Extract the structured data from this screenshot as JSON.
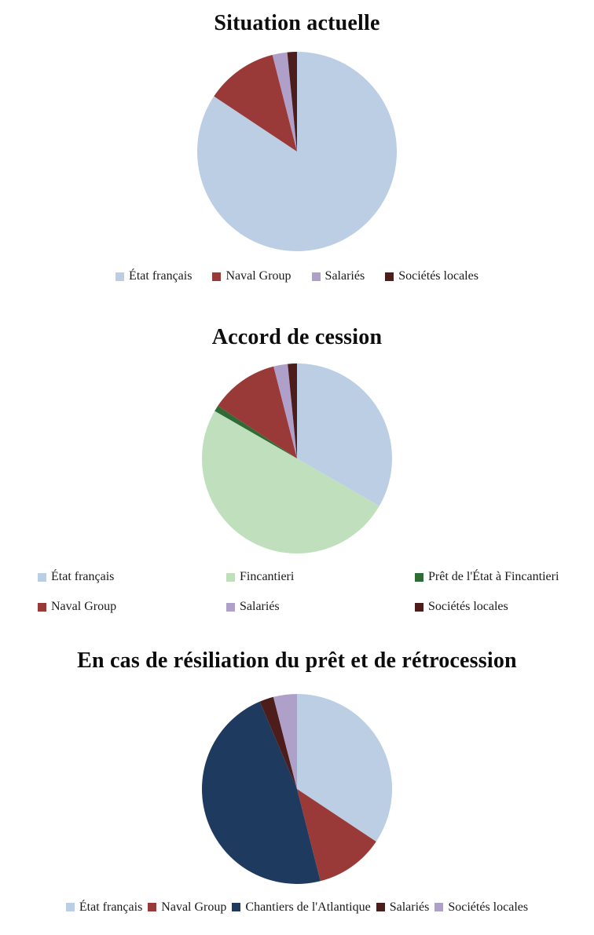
{
  "page": {
    "background_color": "#ffffff",
    "text_color": "#1a1a1a"
  },
  "chart_data": [
    {
      "type": "pie",
      "title": "Situation actuelle",
      "start_angle_deg": 0,
      "direction": "clockwise",
      "legend_position": "bottom-centered-row",
      "series": [
        {
          "label": "État français",
          "value": 84.34,
          "color": "#bccee4"
        },
        {
          "label": "Naval Group",
          "value": 11.7,
          "color": "#9a3a38"
        },
        {
          "label": "Salariés",
          "value": 2.4,
          "color": "#afa0ca"
        },
        {
          "label": "Sociétés locales",
          "value": 1.56,
          "color": "#4c1d1b"
        }
      ]
    },
    {
      "type": "pie",
      "title": "Accord de cession",
      "start_angle_deg": 0,
      "direction": "clockwise",
      "legend_position": "bottom-grid-3col",
      "series": [
        {
          "label": "État français",
          "value": 33.34,
          "color": "#bccee4"
        },
        {
          "label": "Fincantieri",
          "value": 50,
          "color": "#c0dfbc"
        },
        {
          "label": "Prêt de l'État à Fincantieri",
          "value": 1,
          "color": "#2e6b35"
        },
        {
          "label": "Naval Group",
          "value": 11.7,
          "color": "#9a3a38"
        },
        {
          "label": "Salariés",
          "value": 2.4,
          "color": "#afa0ca"
        },
        {
          "label": "Sociétés locales",
          "value": 1.56,
          "color": "#4c1d1b"
        }
      ]
    },
    {
      "type": "pie",
      "title": "En cas de résiliation du prêt et de rétrocession",
      "start_angle_deg": 0,
      "direction": "clockwise",
      "legend_position": "bottom-centered-row-tight",
      "series": [
        {
          "label": "État français",
          "value": 34.34,
          "color": "#bccee4"
        },
        {
          "label": "Naval Group",
          "value": 11.7,
          "color": "#9a3a38"
        },
        {
          "label": "Chantiers de l'Atlantique",
          "value": 47.56,
          "color": "#1f3a5f"
        },
        {
          "label": "Salariés",
          "value": 2.4,
          "color": "#4c1d1b"
        },
        {
          "label": "Sociétés locales",
          "value": 4.0,
          "color": "#afa0ca"
        }
      ]
    }
  ]
}
